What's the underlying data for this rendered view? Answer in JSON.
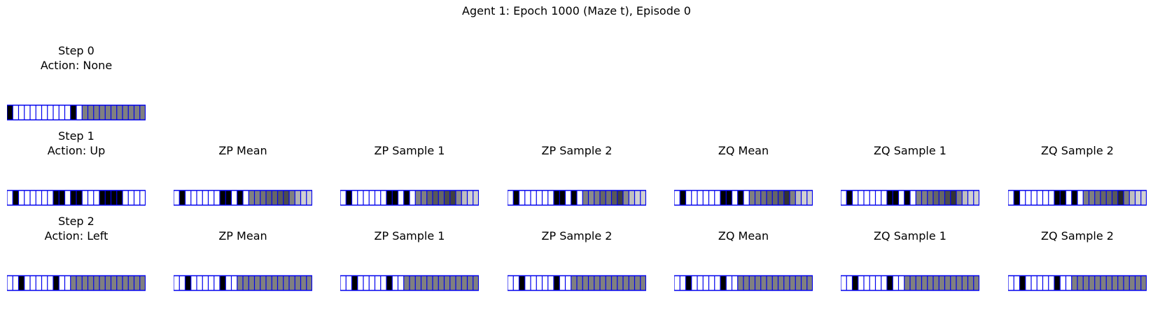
{
  "title": "Agent 1: Epoch 1000 (Maze t), Episode 0",
  "colors": {
    "black": "#000000",
    "white": "#ffffff",
    "grid": "#0000ee",
    "gray": "#808080",
    "dark": "#404040",
    "mid": "#606060",
    "light": "#d3d3d3"
  },
  "rows": [
    {
      "panels": [
        {
          "title": "Step 0",
          "subtitle": "Action: None",
          "cells": [
            1,
            0,
            0,
            0,
            0,
            0,
            0,
            0,
            0,
            0,
            0,
            1,
            0,
            0.5,
            0.5,
            0.5,
            0.5,
            0.5,
            0.5,
            0.5,
            0.5,
            0.5,
            0.5,
            0.5
          ]
        }
      ]
    },
    {
      "panels": [
        {
          "title": "Step 1",
          "subtitle": "Action: Up",
          "cells": [
            0,
            1,
            0,
            0,
            0,
            0,
            0,
            0,
            1,
            1,
            0,
            1,
            1,
            0,
            0,
            0,
            1,
            1,
            1,
            1,
            0,
            0,
            0,
            0
          ]
        },
        {
          "title": "ZP Mean",
          "subtitle": "",
          "cells": [
            0,
            1,
            0,
            0,
            0,
            0,
            0,
            0,
            1,
            1,
            0,
            1,
            0,
            0.5,
            0.5,
            0.55,
            0.6,
            0.6,
            0.65,
            0.7,
            0.5,
            0.3,
            0.18,
            0.18
          ]
        },
        {
          "title": "ZP Sample 1",
          "subtitle": "",
          "cells": [
            0,
            1,
            0,
            0,
            0,
            0,
            0,
            0,
            1,
            1,
            0,
            1,
            0,
            0.5,
            0.5,
            0.6,
            0.65,
            0.6,
            0.7,
            0.75,
            0.45,
            0.25,
            0.18,
            0.18
          ]
        },
        {
          "title": "ZP Sample 2",
          "subtitle": "",
          "cells": [
            0,
            1,
            0,
            0,
            0,
            0,
            0,
            0,
            1,
            1,
            0,
            1,
            0,
            0.5,
            0.45,
            0.5,
            0.6,
            0.55,
            0.65,
            0.75,
            0.45,
            0.25,
            0.18,
            0.18
          ]
        },
        {
          "title": "ZQ Mean",
          "subtitle": "",
          "cells": [
            0,
            1,
            0,
            0,
            0,
            0,
            0,
            0,
            1,
            1,
            0,
            1,
            0,
            0.5,
            0.5,
            0.55,
            0.6,
            0.6,
            0.65,
            0.8,
            0.5,
            0.25,
            0.18,
            0.18
          ]
        },
        {
          "title": "ZQ Sample 1",
          "subtitle": "",
          "cells": [
            0,
            1,
            0,
            0,
            0,
            0,
            0,
            0,
            1,
            1,
            0,
            1,
            0,
            0.5,
            0.5,
            0.55,
            0.6,
            0.6,
            0.7,
            0.8,
            0.5,
            0.25,
            0.18,
            0.18
          ]
        },
        {
          "title": "ZQ Sample 2",
          "subtitle": "",
          "cells": [
            0,
            1,
            0,
            0,
            0,
            0,
            0,
            0,
            1,
            1,
            0,
            1,
            0,
            0.5,
            0.5,
            0.55,
            0.6,
            0.6,
            0.65,
            0.85,
            0.5,
            0.25,
            0.18,
            0.18
          ]
        }
      ]
    },
    {
      "panels": [
        {
          "title": "Step 2",
          "subtitle": "Action: Left",
          "cells": [
            0,
            0,
            1,
            0,
            0,
            0,
            0,
            0,
            1,
            0,
            0,
            0.5,
            0.5,
            0.5,
            0.5,
            0.5,
            0.5,
            0.5,
            0.5,
            0.5,
            0.5,
            0.5,
            0.5,
            0.5
          ]
        },
        {
          "title": "ZP Mean",
          "subtitle": "",
          "cells": [
            0,
            0,
            1,
            0,
            0,
            0,
            0,
            0,
            1,
            0,
            0,
            0.5,
            0.5,
            0.5,
            0.5,
            0.5,
            0.5,
            0.5,
            0.5,
            0.5,
            0.5,
            0.5,
            0.5,
            0.5
          ]
        },
        {
          "title": "ZP Sample 1",
          "subtitle": "",
          "cells": [
            0,
            0,
            1,
            0,
            0,
            0,
            0,
            0,
            1,
            0,
            0,
            0.5,
            0.5,
            0.5,
            0.5,
            0.5,
            0.5,
            0.5,
            0.5,
            0.5,
            0.5,
            0.5,
            0.5,
            0.5
          ]
        },
        {
          "title": "ZP Sample 2",
          "subtitle": "",
          "cells": [
            0,
            0,
            1,
            0,
            0,
            0,
            0,
            0,
            1,
            0,
            0,
            0.5,
            0.5,
            0.5,
            0.5,
            0.5,
            0.5,
            0.5,
            0.5,
            0.5,
            0.5,
            0.5,
            0.5,
            0.5
          ]
        },
        {
          "title": "ZQ Mean",
          "subtitle": "",
          "cells": [
            0,
            0,
            1,
            0,
            0,
            0,
            0,
            0,
            1,
            0,
            0,
            0.5,
            0.5,
            0.5,
            0.5,
            0.5,
            0.5,
            0.5,
            0.5,
            0.5,
            0.5,
            0.5,
            0.5,
            0.5
          ]
        },
        {
          "title": "ZQ Sample 1",
          "subtitle": "",
          "cells": [
            0,
            0,
            1,
            0,
            0,
            0,
            0,
            0,
            1,
            0,
            0,
            0.5,
            0.5,
            0.5,
            0.5,
            0.5,
            0.5,
            0.5,
            0.5,
            0.5,
            0.5,
            0.5,
            0.5,
            0.5
          ]
        },
        {
          "title": "ZQ Sample 2",
          "subtitle": "",
          "cells": [
            0,
            0,
            1,
            0,
            0,
            0,
            0,
            0,
            1,
            0,
            0,
            0.5,
            0.5,
            0.5,
            0.5,
            0.5,
            0.5,
            0.5,
            0.5,
            0.5,
            0.5,
            0.5,
            0.5,
            0.5
          ]
        }
      ]
    }
  ]
}
